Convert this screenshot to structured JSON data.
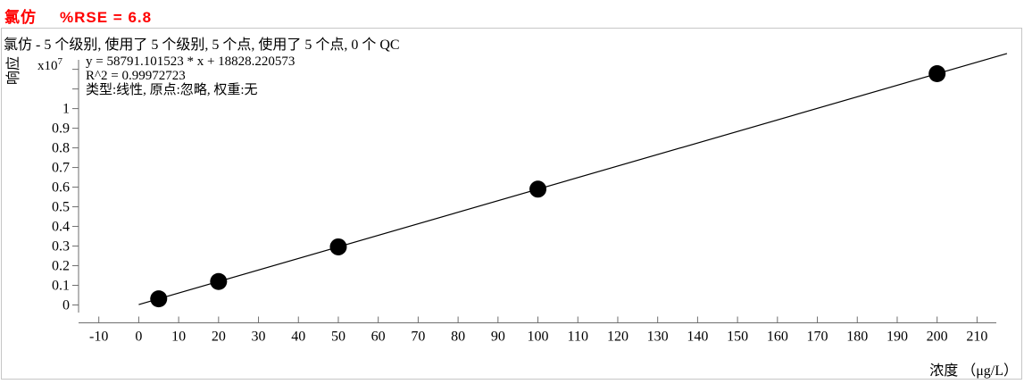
{
  "title": {
    "compound": "氯仿",
    "rse": "%RSE = 6.8",
    "color": "#ff0000"
  },
  "summary_line": "氯仿 - 5 个级别, 使用了 5 个级别, 5 个点, 使用了 5 个点, 0 个 QC",
  "fit_info": {
    "equation": "y = 58791.101523 * x  + 18828.220573",
    "r_squared": "R^2 = 0.99972723",
    "model": "类型:线性, 原点:忽略, 权重:无"
  },
  "axes": {
    "y_title": "响应",
    "y_scale_base": "x10",
    "y_scale_exp": "7",
    "x_title": "浓度 （μg/L）"
  },
  "chart_data": {
    "type": "scatter",
    "title": "氯仿 %RSE = 6.8",
    "xlabel": "浓度 (μg/L)",
    "ylabel": "响应 x10^7",
    "x": [
      5,
      20,
      50,
      100,
      200
    ],
    "y": [
      312784,
      1194650,
      2958383,
      5897938,
      11777049
    ],
    "fit": {
      "type": "线性",
      "origin": "忽略",
      "weight": "无",
      "slope": 58791.101523,
      "intercept": 18828.220573,
      "r2": 0.99972723
    },
    "x_ticks": [
      -10,
      0,
      10,
      20,
      30,
      40,
      50,
      60,
      70,
      80,
      90,
      100,
      110,
      120,
      130,
      140,
      150,
      160,
      170,
      180,
      190,
      200,
      210
    ],
    "y_ticks": [
      {
        "value": 0,
        "label": "0"
      },
      {
        "value": 0.1,
        "label": "0.1"
      },
      {
        "value": 0.2,
        "label": "0.2"
      },
      {
        "value": 0.3,
        "label": "0.3"
      },
      {
        "value": 0.4,
        "label": "0.4"
      },
      {
        "value": 0.5,
        "label": "0.5"
      },
      {
        "value": 0.6,
        "label": "0.6"
      },
      {
        "value": 0.7,
        "label": "0.7"
      },
      {
        "value": 0.8,
        "label": "0.8"
      },
      {
        "value": 0.9,
        "label": "0.9"
      },
      {
        "value": 1,
        "label": "1"
      },
      {
        "value": 1.1,
        "label": ""
      },
      {
        "value": 1.2,
        "label": ""
      }
    ],
    "xlim": [
      -15,
      215
    ],
    "ylim_e7": [
      0,
      1.25
    ],
    "line_extent": [
      0,
      217.5
    ],
    "grid": false,
    "legend": false,
    "point_color": "#000000",
    "line_color": "#000000",
    "axis_color": "#6e6e6e"
  }
}
